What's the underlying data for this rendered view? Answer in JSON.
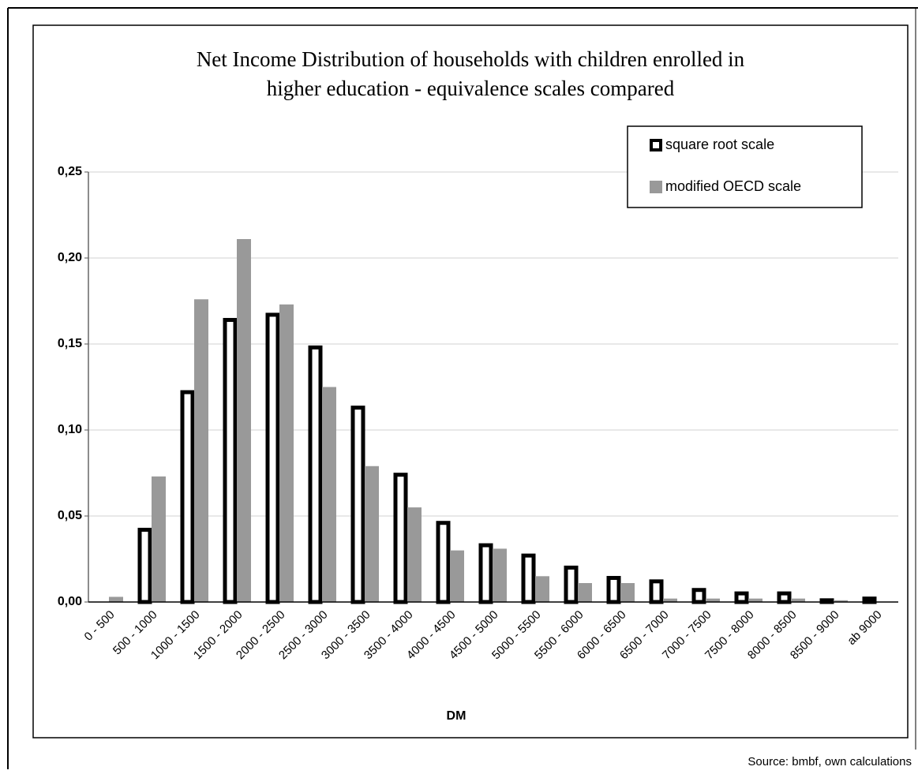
{
  "chart_data": {
    "type": "bar",
    "title": [
      "Net Income Distribution of households with children enrolled in",
      "higher education - equivalence scales compared"
    ],
    "x_label": "DM",
    "source": "Source: bmbf, own calculations",
    "categories": [
      "0 - 500",
      "500 - 1000",
      "1000 - 1500",
      "1500 - 2000",
      "2000 - 2500",
      "2500 - 3000",
      "3000 - 3500",
      "3500 - 4000",
      "4000 - 4500",
      "4500 - 5000",
      "5000 - 5500",
      "5500 - 6000",
      "6000 - 6500",
      "6500 - 7000",
      "7000 - 7500",
      "7500 - 8000",
      "8000 - 8500",
      "8500 - 9000",
      "ab 9000"
    ],
    "series": [
      {
        "name": "square root scale",
        "color": "#000000",
        "values": [
          0,
          0.042,
          0.122,
          0.164,
          0.167,
          0.148,
          0.113,
          0.074,
          0.046,
          0.033,
          0.027,
          0.02,
          0.014,
          0.012,
          0.007,
          0.005,
          0.005,
          0.001,
          0.002
        ]
      },
      {
        "name": "modified OECD scale",
        "color": "#999999",
        "values": [
          0.003,
          0.073,
          0.176,
          0.211,
          0.173,
          0.125,
          0.079,
          0.055,
          0.03,
          0.031,
          0.015,
          0.011,
          0.011,
          0.002,
          0.002,
          0.002,
          0.002,
          0.001,
          0
        ]
      }
    ],
    "ylim": [
      0,
      0.25
    ],
    "yticks": [
      {
        "value": 0,
        "label": "0,00"
      },
      {
        "value": 0.05,
        "label": "0,05"
      },
      {
        "value": 0.1,
        "label": "0,10"
      },
      {
        "value": 0.15,
        "label": "0,15"
      },
      {
        "value": 0.2,
        "label": "0,20"
      },
      {
        "value": 0.25,
        "label": "0,25"
      }
    ],
    "grid": true,
    "legend": "top-right"
  }
}
